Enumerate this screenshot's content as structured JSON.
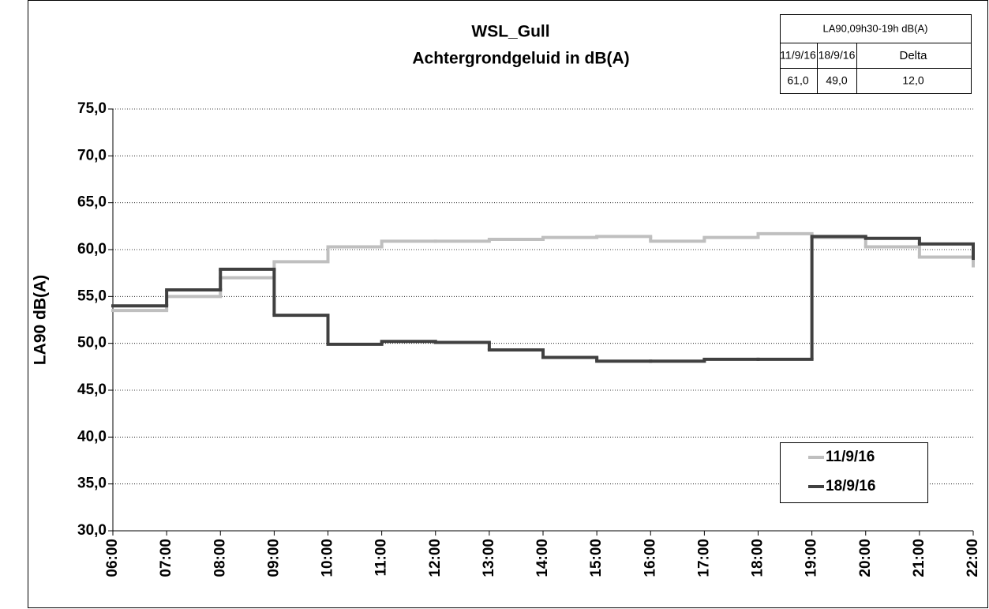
{
  "chart_data": {
    "type": "step",
    "title": "WSL_Gull",
    "subtitle": "Achtergrondgeluid  in dB(A)",
    "y_label": "LA90 dB(A)",
    "categories": [
      "06:00",
      "07:00",
      "08:00",
      "09:00",
      "10:00",
      "11:00",
      "12:00",
      "13:00",
      "14:00",
      "15:00",
      "16:00",
      "17:00",
      "18:00",
      "19:00",
      "20:00",
      "21:00",
      "22:00"
    ],
    "series": [
      {
        "name": "11/9/16",
        "color": "#bfbfbf",
        "values": [
          53.5,
          55.0,
          57.0,
          58.7,
          60.3,
          60.9,
          60.9,
          61.1,
          61.3,
          61.4,
          60.9,
          61.3,
          61.7,
          61.3,
          60.3,
          59.2,
          58.1
        ]
      },
      {
        "name": "18/9/16",
        "color": "#404040",
        "values": [
          54.0,
          55.7,
          57.9,
          53.0,
          49.9,
          50.2,
          50.1,
          49.3,
          48.5,
          48.1,
          48.1,
          48.3,
          48.3,
          61.4,
          61.2,
          60.6,
          58.9
        ]
      }
    ],
    "ylim": [
      30,
      75
    ],
    "yticks": [
      {
        "value": 30,
        "label": "30,0"
      },
      {
        "value": 35,
        "label": "35,0"
      },
      {
        "value": 40,
        "label": "40,0"
      },
      {
        "value": 45,
        "label": "45,0"
      },
      {
        "value": 50,
        "label": "50,0"
      },
      {
        "value": 55,
        "label": "55,0"
      },
      {
        "value": 60,
        "label": "60,0"
      },
      {
        "value": 65,
        "label": "65,0"
      },
      {
        "value": 70,
        "label": "70,0"
      },
      {
        "value": 75,
        "label": "75,0"
      }
    ],
    "grid": true,
    "legend": "lower right",
    "table": {
      "header": "LA90,09h30-19h dB(A)",
      "columns": [
        "11/9/16",
        "18/9/16",
        "Delta"
      ],
      "row": [
        "61,0",
        "49,0",
        "12,0"
      ]
    }
  }
}
